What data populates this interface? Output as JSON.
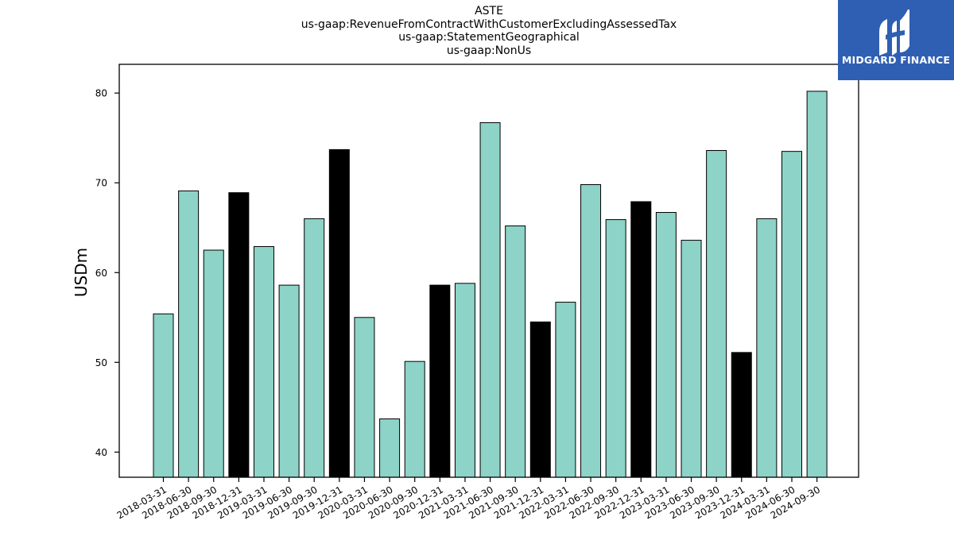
{
  "logo": {
    "text": "MIDGARD FINANCE",
    "bg": "#2f5fb3"
  },
  "colors": {
    "regular": "#8dd3c7",
    "highlight": "#000000",
    "edge": "#000000"
  },
  "chart_data": {
    "type": "bar",
    "title": [
      "ASTE",
      "us-gaap:RevenueFromContractWithCustomerExcludingAssessedTax",
      "us-gaap:StatementGeographical",
      "us-gaap:NonUs"
    ],
    "xlabel": "",
    "ylabel": "USDm",
    "ylim": [
      37.2,
      83.2
    ],
    "yticks": [
      40,
      50,
      60,
      70,
      80
    ],
    "categories": [
      "2018-03-31",
      "2018-06-30",
      "2018-09-30",
      "2018-12-31",
      "2019-03-31",
      "2019-06-30",
      "2019-09-30",
      "2019-12-31",
      "2020-03-31",
      "2020-06-30",
      "2020-09-30",
      "2020-12-31",
      "2021-03-31",
      "2021-06-30",
      "2021-09-30",
      "2021-12-31",
      "2022-03-31",
      "2022-06-30",
      "2022-09-30",
      "2022-12-31",
      "2023-03-31",
      "2023-06-30",
      "2023-09-30",
      "2023-12-31",
      "2024-03-31",
      "2024-06-30",
      "2024-09-30"
    ],
    "values": [
      55.4,
      69.1,
      62.5,
      68.9,
      62.9,
      58.6,
      66.0,
      73.7,
      55.0,
      43.7,
      50.1,
      58.6,
      58.8,
      76.7,
      65.2,
      54.5,
      56.7,
      69.8,
      65.9,
      67.9,
      66.7,
      63.6,
      73.6,
      51.1,
      66.0,
      73.5,
      80.2
    ],
    "grid": false,
    "legend": "none"
  }
}
